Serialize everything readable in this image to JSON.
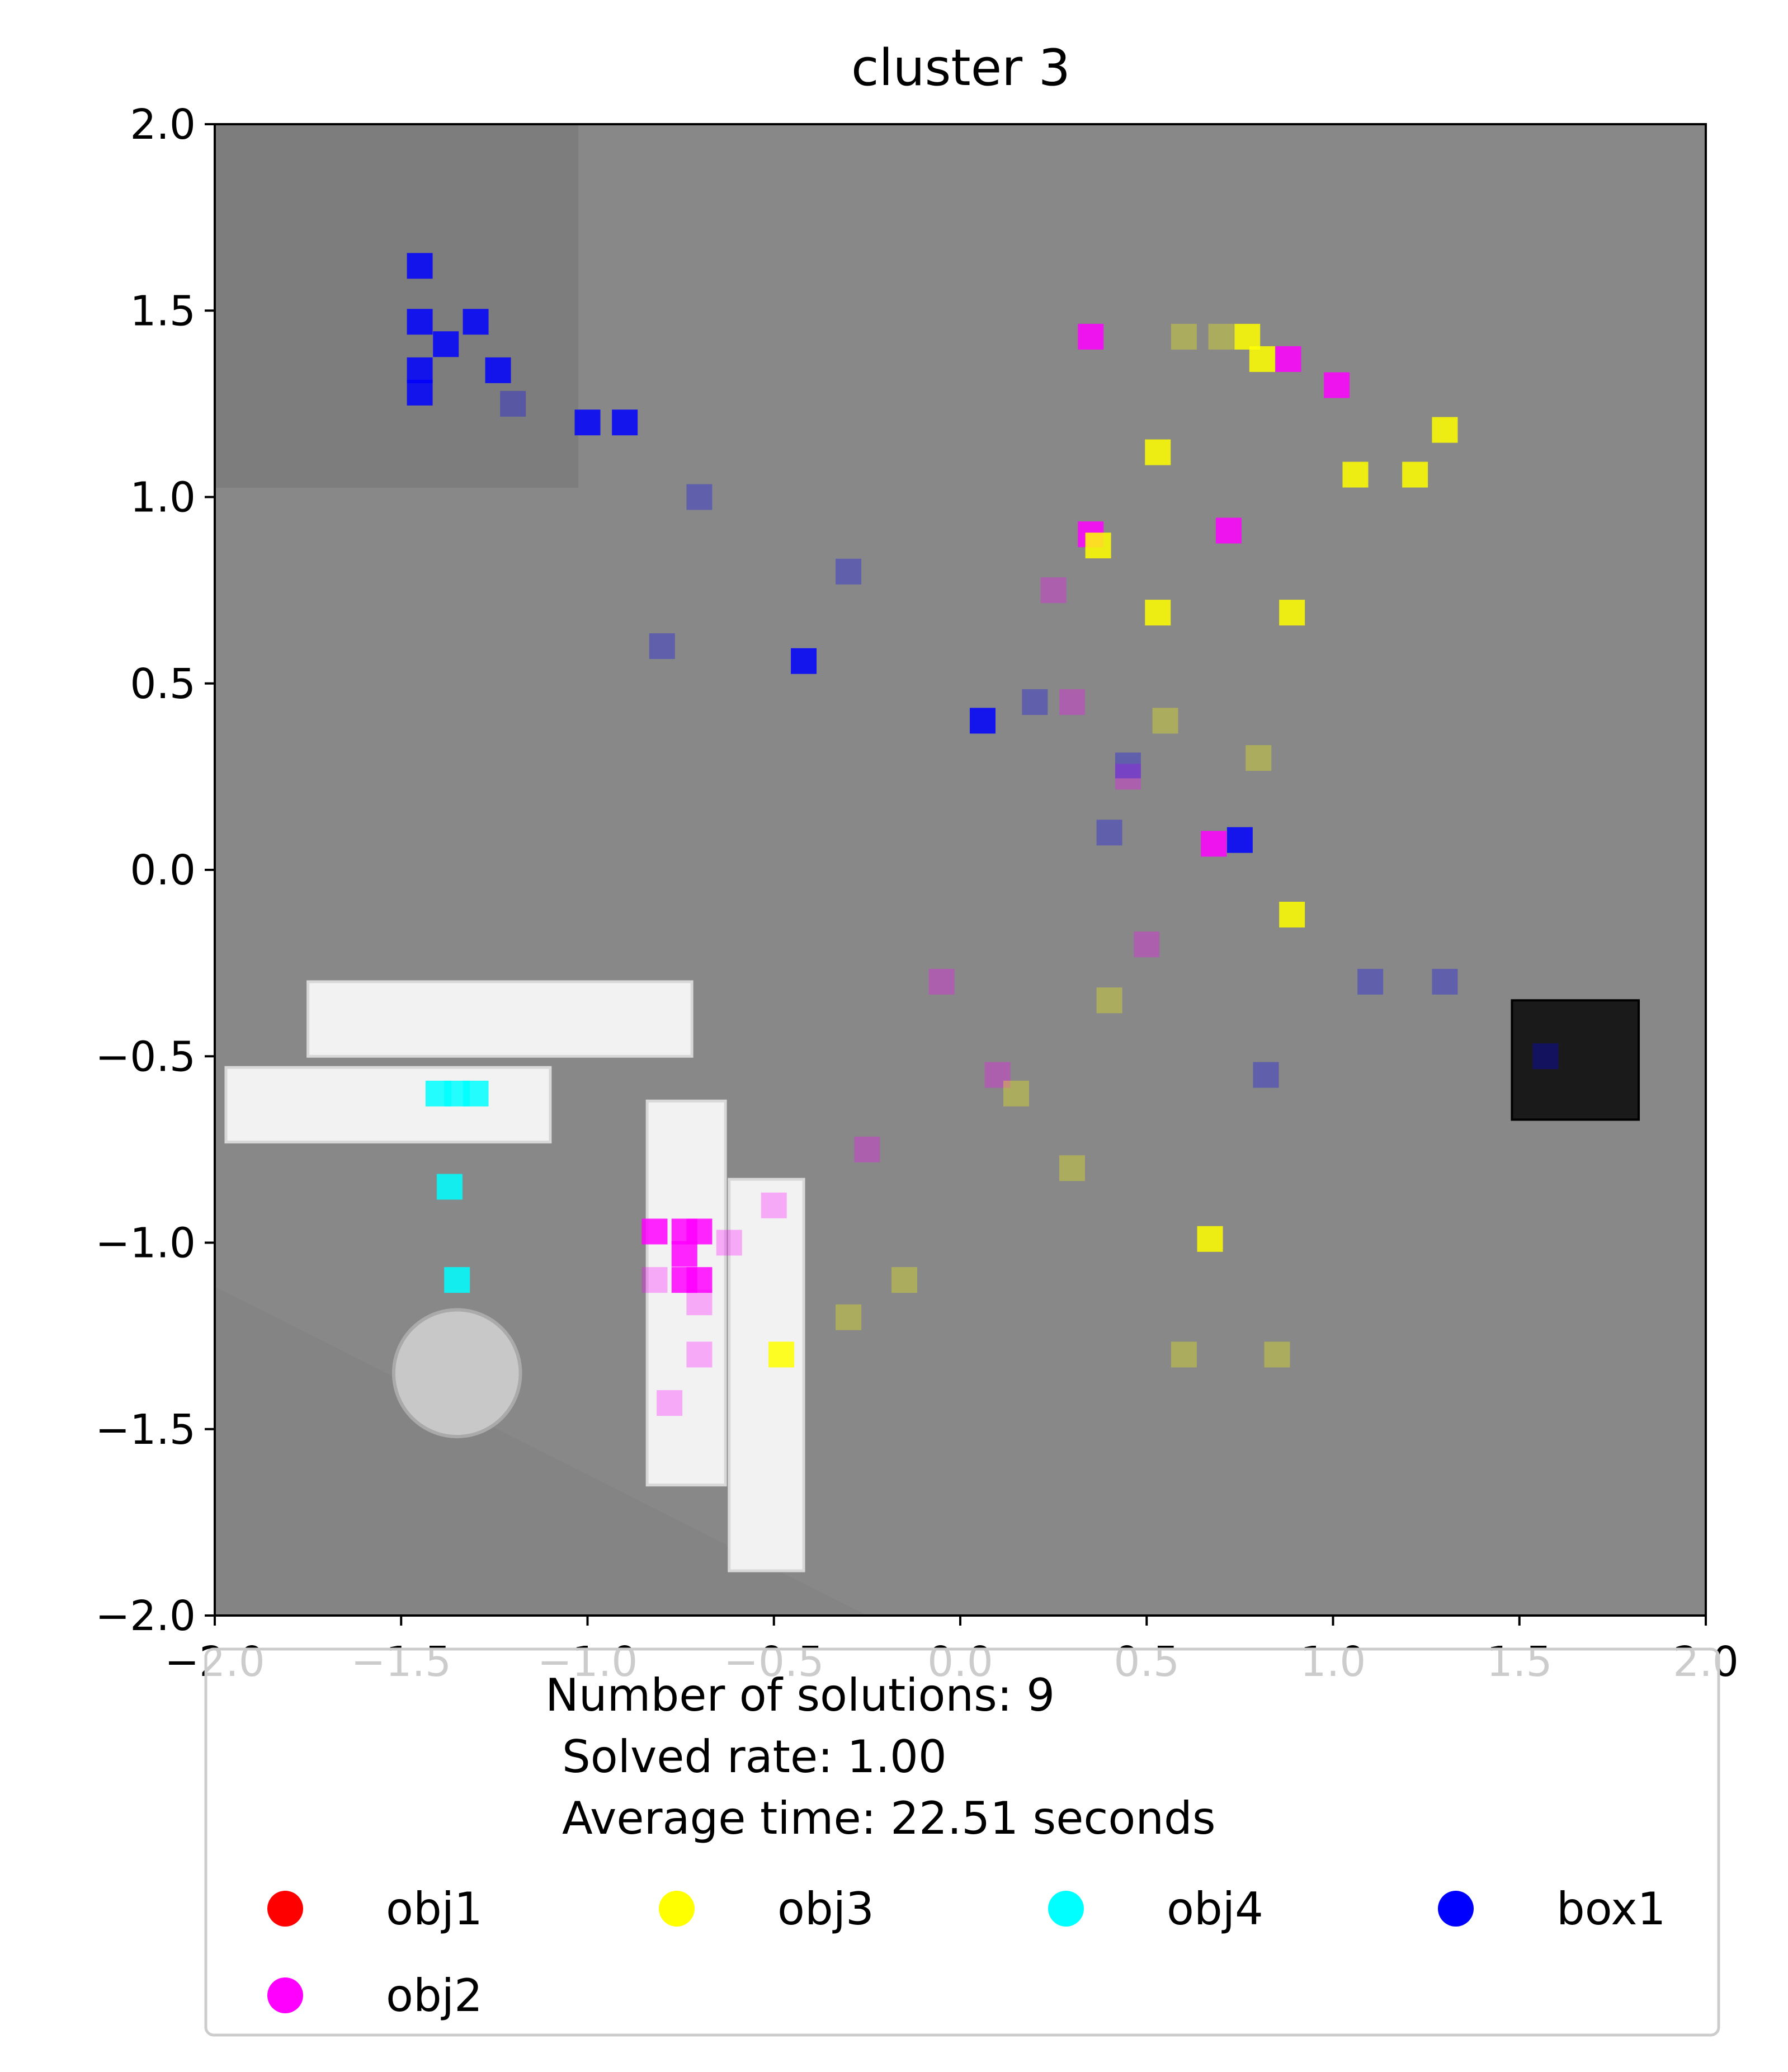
{
  "chart_data": {
    "type": "scatter",
    "title": "cluster 3",
    "xlim": [
      -2.0,
      2.0
    ],
    "ylim": [
      -2.0,
      2.0
    ],
    "xticks": [
      "−2.0",
      "−1.5",
      "−1.0",
      "−0.5",
      "0.0",
      "0.5",
      "1.0",
      "1.5",
      "2.0"
    ],
    "yticks": [
      "2.0",
      "1.5",
      "1.0",
      "0.5",
      "0.0",
      "−0.5",
      "−1.0",
      "−1.5",
      "−2.0"
    ],
    "xtick_values": [
      -2.0,
      -1.5,
      -1.0,
      -0.5,
      0.0,
      0.5,
      1.0,
      1.5,
      2.0
    ],
    "ytick_values": [
      2.0,
      1.5,
      1.0,
      0.5,
      0.0,
      -0.5,
      -1.0,
      -1.5,
      -2.0
    ],
    "background": "top-down grey scene render",
    "legend": {
      "placement": "below plot",
      "lines": [
        "Number of solutions: 9",
        "Solved rate: 1.00",
        "Average time: 22.51 seconds"
      ],
      "entries": [
        {
          "label": "obj1",
          "color": "#ff0000"
        },
        {
          "label": "obj3",
          "color": "#ffff00"
        },
        {
          "label": "obj4",
          "color": "#00ffff"
        },
        {
          "label": "box1",
          "color": "#0000ff"
        },
        {
          "label": "obj2",
          "color": "#ff00ff"
        }
      ]
    },
    "series": [
      {
        "name": "obj2",
        "color": "#ff00ff",
        "points": [
          [
            0.35,
            1.43
          ],
          [
            0.88,
            1.37
          ],
          [
            1.01,
            1.3
          ],
          [
            0.35,
            0.9
          ],
          [
            0.72,
            0.91
          ],
          [
            0.68,
            0.07
          ],
          [
            -0.82,
            -0.97
          ],
          [
            -0.74,
            -0.97
          ],
          [
            -0.7,
            -0.97
          ],
          [
            -0.74,
            -1.03
          ],
          [
            -0.7,
            -1.1
          ],
          [
            -0.74,
            -1.1
          ],
          [
            -0.82,
            -1.1
          ],
          [
            -0.7,
            -1.16
          ],
          [
            -0.7,
            -1.3
          ],
          [
            -0.78,
            -1.43
          ],
          [
            -0.62,
            -1.0
          ],
          [
            -0.5,
            -0.9
          ],
          [
            0.25,
            0.75
          ],
          [
            0.3,
            0.45
          ],
          [
            0.45,
            0.25
          ],
          [
            -0.05,
            -0.3
          ],
          [
            0.1,
            -0.55
          ],
          [
            -0.25,
            -0.75
          ],
          [
            0.5,
            -0.2
          ]
        ]
      },
      {
        "name": "obj3",
        "color": "#ffff00",
        "points": [
          [
            0.77,
            1.43
          ],
          [
            0.81,
            1.37
          ],
          [
            1.3,
            1.18
          ],
          [
            0.53,
            1.12
          ],
          [
            1.06,
            1.06
          ],
          [
            1.22,
            1.06
          ],
          [
            0.37,
            0.87
          ],
          [
            0.53,
            0.69
          ],
          [
            0.89,
            0.69
          ],
          [
            0.89,
            -0.12
          ],
          [
            0.67,
            -0.99
          ],
          [
            -0.48,
            -1.3
          ],
          [
            0.6,
            1.43
          ],
          [
            0.7,
            1.43
          ],
          [
            0.55,
            0.4
          ],
          [
            0.8,
            0.3
          ],
          [
            0.4,
            -0.35
          ],
          [
            0.15,
            -0.6
          ],
          [
            -0.15,
            -1.1
          ],
          [
            0.3,
            -0.8
          ],
          [
            0.85,
            -1.3
          ],
          [
            0.6,
            -1.3
          ],
          [
            -0.3,
            -1.2
          ]
        ]
      },
      {
        "name": "obj4",
        "color": "#00ffff",
        "points": [
          [
            -1.4,
            -0.6
          ],
          [
            -1.35,
            -0.6
          ],
          [
            -1.3,
            -0.6
          ],
          [
            -1.37,
            -0.85
          ],
          [
            -1.35,
            -1.1
          ]
        ]
      },
      {
        "name": "box1",
        "color": "#0000ff",
        "points": [
          [
            -1.45,
            1.62
          ],
          [
            -1.45,
            1.47
          ],
          [
            -1.3,
            1.47
          ],
          [
            -1.38,
            1.41
          ],
          [
            -1.45,
            1.34
          ],
          [
            -1.45,
            1.28
          ],
          [
            -1.24,
            1.34
          ],
          [
            -1.0,
            1.2
          ],
          [
            -0.9,
            1.2
          ],
          [
            -0.42,
            0.56
          ],
          [
            0.06,
            0.4
          ],
          [
            0.75,
            0.08
          ],
          [
            0.82,
            -0.55
          ],
          [
            1.57,
            -0.5
          ],
          [
            -1.2,
            1.25
          ],
          [
            -0.7,
            1.0
          ],
          [
            -0.3,
            0.8
          ],
          [
            0.2,
            0.45
          ],
          [
            0.45,
            0.28
          ],
          [
            1.1,
            -0.3
          ],
          [
            1.3,
            -0.3
          ],
          [
            0.4,
            0.1
          ],
          [
            -0.8,
            0.6
          ]
        ]
      }
    ],
    "scene_objects": [
      {
        "shape": "rect",
        "x0": -1.75,
        "y0": -0.5,
        "x1": -0.72,
        "y1": -0.3
      },
      {
        "shape": "rect",
        "x0": -1.97,
        "y0": -0.73,
        "x1": -1.1,
        "y1": -0.53
      },
      {
        "shape": "rect",
        "x0": -0.84,
        "y0": -1.65,
        "x1": -0.63,
        "y1": -0.62
      },
      {
        "shape": "rect",
        "x0": -0.62,
        "y0": -1.88,
        "x1": -0.42,
        "y1": -0.83
      },
      {
        "shape": "circle",
        "cx": -1.35,
        "cy": -1.35,
        "r": 0.17
      },
      {
        "shape": "box",
        "x0": 1.48,
        "y0": -0.67,
        "x1": 1.82,
        "y1": -0.35
      }
    ]
  }
}
